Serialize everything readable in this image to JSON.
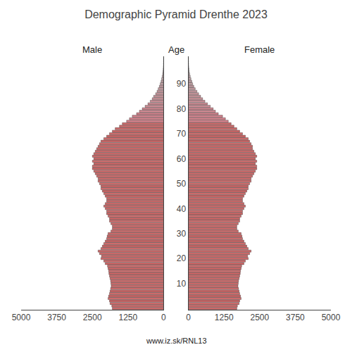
{
  "chart_data": {
    "type": "bar",
    "orientation": "horizontal",
    "title": "Demographic Pyramid Drenthe 2023",
    "ylabel": "Age",
    "annotations": [
      "www.iz.sk/RNL13"
    ],
    "categories": [
      0,
      1,
      2,
      3,
      4,
      5,
      6,
      7,
      8,
      9,
      10,
      11,
      12,
      13,
      14,
      15,
      16,
      17,
      18,
      19,
      20,
      21,
      22,
      23,
      24,
      25,
      26,
      27,
      28,
      29,
      30,
      31,
      32,
      33,
      34,
      35,
      36,
      37,
      38,
      39,
      40,
      41,
      42,
      43,
      44,
      45,
      46,
      47,
      48,
      49,
      50,
      51,
      52,
      53,
      54,
      55,
      56,
      57,
      58,
      59,
      60,
      61,
      62,
      63,
      64,
      65,
      66,
      67,
      68,
      69,
      70,
      71,
      72,
      73,
      74,
      75,
      76,
      77,
      78,
      79,
      80,
      81,
      82,
      83,
      84,
      85,
      86,
      87,
      88,
      89,
      90,
      91,
      92,
      93,
      94,
      95,
      96,
      97,
      98,
      99,
      100
    ],
    "series": [
      {
        "name": "Male",
        "values": [
          1800,
          1820,
          1880,
          1900,
          1950,
          1930,
          1900,
          1880,
          1860,
          1840,
          1850,
          1860,
          1880,
          1900,
          1920,
          1930,
          1950,
          1970,
          2050,
          2100,
          2200,
          2180,
          2250,
          2300,
          2200,
          2150,
          2100,
          2050,
          2000,
          1980,
          1950,
          1850,
          1800,
          1800,
          1850,
          1900,
          1900,
          1950,
          2000,
          2000,
          2050,
          2100,
          2050,
          2000,
          2000,
          2050,
          2100,
          2150,
          2200,
          2200,
          2250,
          2300,
          2300,
          2350,
          2400,
          2450,
          2500,
          2500,
          2450,
          2500,
          2450,
          2500,
          2450,
          2400,
          2350,
          2300,
          2250,
          2200,
          2100,
          2000,
          1900,
          1800,
          1700,
          1550,
          1450,
          1300,
          1200,
          1100,
          950,
          850,
          750,
          650,
          550,
          470,
          400,
          350,
          280,
          230,
          190,
          150,
          120,
          90,
          70,
          50,
          35,
          25,
          15,
          10,
          5,
          3,
          1
        ]
      },
      {
        "name": "Female",
        "values": [
          1700,
          1720,
          1780,
          1800,
          1850,
          1830,
          1800,
          1780,
          1760,
          1740,
          1750,
          1760,
          1780,
          1800,
          1820,
          1830,
          1850,
          1870,
          1950,
          2000,
          2100,
          2080,
          2150,
          2200,
          2100,
          2050,
          2000,
          1950,
          1900,
          1880,
          1850,
          1750,
          1700,
          1700,
          1750,
          1800,
          1800,
          1850,
          1900,
          1900,
          1950,
          2000,
          1950,
          1900,
          1900,
          1950,
          2000,
          2050,
          2100,
          2100,
          2150,
          2200,
          2200,
          2250,
          2300,
          2350,
          2400,
          2400,
          2350,
          2400,
          2350,
          2400,
          2350,
          2300,
          2250,
          2250,
          2200,
          2150,
          2100,
          2000,
          1900,
          1800,
          1700,
          1600,
          1500,
          1400,
          1300,
          1200,
          1050,
          950,
          870,
          770,
          670,
          580,
          500,
          430,
          360,
          300,
          240,
          190,
          150,
          120,
          90,
          65,
          45,
          30,
          20,
          12,
          7,
          4,
          2
        ]
      }
    ],
    "colors": [
      "#cd6b6b",
      "#cd6b6b",
      "#cd6b6b",
      "#cd6b6b",
      "#cd6b6b",
      "#cd6b6b",
      "#cd6b6b",
      "#cd6b6b",
      "#cd6b6b",
      "#cd6b6b",
      "#cd6b6b",
      "#cd6b6b",
      "#cd6b6b",
      "#cd6b6b",
      "#cd6b6b",
      "#cd6b6b",
      "#cd6b6b",
      "#cd6b6b",
      "#cd6b6b",
      "#cd6b6b",
      "#cd6b6b",
      "#cd6b6b",
      "#cd6b6b",
      "#cd6b6b",
      "#cd6b6b",
      "#cd6b6b",
      "#cd6b6b",
      "#cd6b6b",
      "#cd6b6b",
      "#cd6b6b",
      "#cd6b6b",
      "#cd6b6b",
      "#cd6b6b",
      "#cd6b6b",
      "#cd6b6b",
      "#cd6b6b",
      "#cd6b6b",
      "#cd6b6b",
      "#cd6b6b",
      "#cd6b6b",
      "#cd6b6b",
      "#cd6b6b",
      "#cd6b6b",
      "#cd6b6b",
      "#cd6b6b",
      "#cd6b6b",
      "#cd6b6b",
      "#cd6b6b",
      "#cd6b6b",
      "#cd6b6b",
      "#cd6b6b",
      "#cd6b6b",
      "#cd6b6b",
      "#cd6b6b",
      "#cd6b6b",
      "#cd6b6b",
      "#cd6b6b",
      "#cd6b6b",
      "#cd6b6b",
      "#cd6b6b",
      "#cd6b6b",
      "#cd6b6b",
      "#cd6b6b",
      "#cd6b6b",
      "#cd6b6b",
      "#cd6b6b",
      "#cd6b6b",
      "#cd6b6b",
      "#cd6b6b",
      "#cd6b6b",
      "#cd6b6b",
      "#cd6b6b",
      "#cd6b6b",
      "#cd6b6b",
      "#cd6b6b",
      "#d4808a",
      "#d2818b",
      "#d1838d",
      "#cf858e",
      "#ce8790",
      "#cc8991",
      "#cb8b93",
      "#c98d94",
      "#c88f96",
      "#c79197",
      "#c59399",
      "#c4959a",
      "#c2979c",
      "#c1989d",
      "#bf9a9f",
      "#be9ca0",
      "#bc9ea2",
      "#bba0a3",
      "#baa2a5",
      "#b8a4a6",
      "#b7a6a8",
      "#b5a8a9",
      "#b4aaab",
      "#b2acac",
      "#b1aeae",
      "#b0b0b0"
    ],
    "xlim": [
      0,
      5000
    ],
    "xticks": [
      0,
      1250,
      2500,
      3750,
      5000
    ],
    "ylim": [
      -0.5,
      101
    ],
    "yticks": [
      10,
      20,
      30,
      40,
      50,
      60,
      70,
      80,
      90
    ],
    "grid": false
  }
}
